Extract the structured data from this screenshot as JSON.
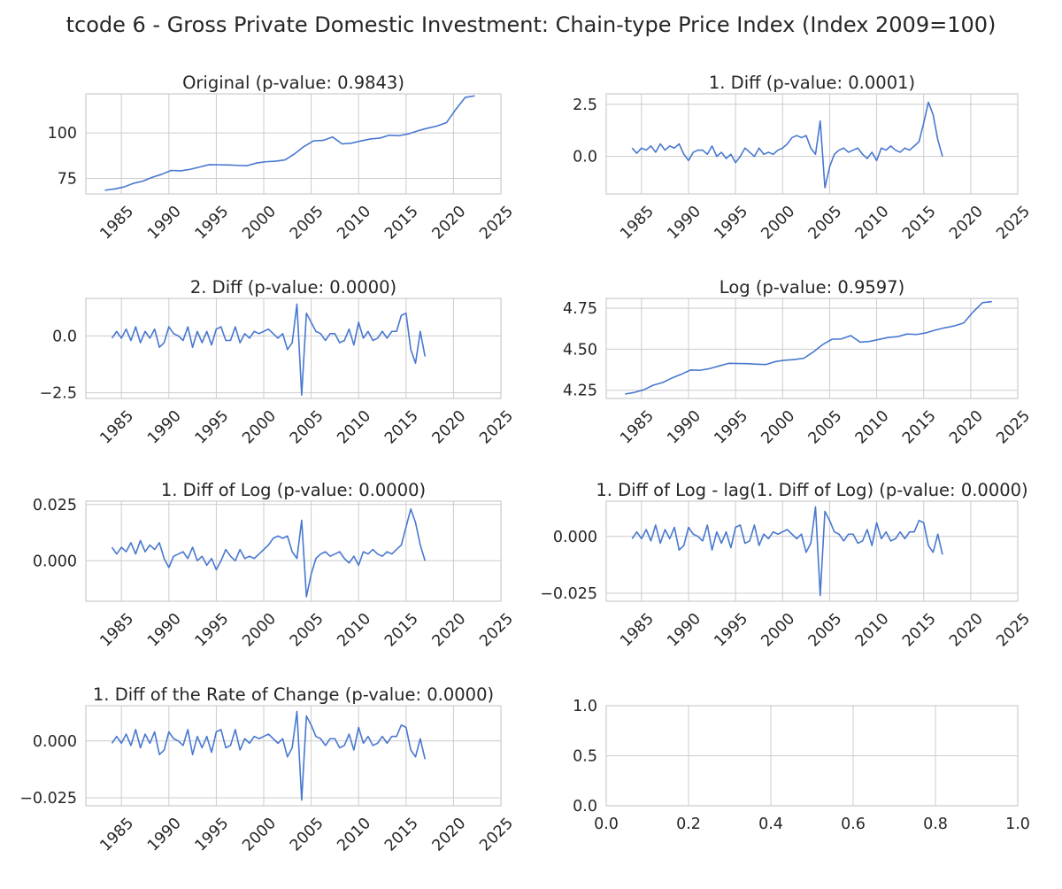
{
  "figure": {
    "suptitle": "tcode 6 - Gross Private Domestic Investment: Chain-type Price Index (Index 2009=100)",
    "line_color": "#4878cf",
    "grid_color": "#cccccc",
    "frame_color": "#cccccc"
  },
  "chart_data": [
    {
      "type": "line",
      "title": "Original (p-value: 0.9843)",
      "xlabel": "",
      "ylabel": "",
      "xlim": [
        1981.25,
        2025.0
      ],
      "ylim": [
        66.5,
        121.5
      ],
      "xticks": [
        1985,
        1990,
        1995,
        2000,
        2005,
        2010,
        2015,
        2020,
        2025
      ],
      "yticks": [
        75,
        100
      ],
      "ytick_labels": [
        "75",
        "100"
      ],
      "x_start": 1983.25,
      "x_step": 1.0,
      "values": [
        68.5,
        69.2,
        70.3,
        72.3,
        73.5,
        75.6,
        77.3,
        79.4,
        79.2,
        80.0,
        81.3,
        82.6,
        82.5,
        82.4,
        82.2,
        82.0,
        83.5,
        84.2,
        84.5,
        85.2,
        88.5,
        92.6,
        95.7,
        95.9,
        97.8,
        94.0,
        94.4,
        95.6,
        96.7,
        97.2,
        98.8,
        98.5,
        99.5,
        101.2,
        102.6,
        103.8,
        105.6,
        113.0,
        119.6,
        120.4
      ]
    },
    {
      "type": "line",
      "title": "1. Diff (p-value: 0.0001)",
      "xlabel": "",
      "ylabel": "",
      "xlim": [
        1981.25,
        2025.0
      ],
      "ylim": [
        -1.8,
        3.0
      ],
      "xticks": [
        1985,
        1990,
        1995,
        2000,
        2005,
        2010,
        2015,
        2020,
        2025
      ],
      "yticks": [
        0.0,
        2.5
      ],
      "ytick_labels": [
        "0.0",
        "2.5"
      ],
      "x_start": 1984.0,
      "x_step": 0.5,
      "values": [
        0.4,
        0.15,
        0.4,
        0.3,
        0.5,
        0.2,
        0.6,
        0.3,
        0.5,
        0.4,
        0.6,
        0.1,
        -0.2,
        0.2,
        0.3,
        0.3,
        0.1,
        0.5,
        0.0,
        0.2,
        -0.1,
        0.1,
        -0.3,
        0.0,
        0.4,
        0.2,
        0.0,
        0.4,
        0.1,
        0.2,
        0.1,
        0.3,
        0.4,
        0.6,
        0.9,
        1.0,
        0.9,
        1.0,
        0.4,
        0.1,
        1.7,
        -1.5,
        -0.5,
        0.1,
        0.3,
        0.4,
        0.2,
        0.3,
        0.4,
        0.1,
        -0.1,
        0.2,
        -0.2,
        0.4,
        0.3,
        0.5,
        0.3,
        0.2,
        0.4,
        0.3,
        0.5,
        0.7,
        1.6,
        2.6,
        2.0,
        0.8,
        0.0
      ]
    },
    {
      "type": "line",
      "title": "2. Diff (p-value: 0.0000)",
      "xlabel": "",
      "ylabel": "",
      "xlim": [
        1981.25,
        2025.0
      ],
      "ylim": [
        -2.75,
        1.65
      ],
      "xticks": [
        1985,
        1990,
        1995,
        2000,
        2005,
        2010,
        2015,
        2020,
        2025
      ],
      "yticks": [
        -2.5,
        0.0
      ],
      "ytick_labels": [
        "−2.5",
        "0.0"
      ],
      "x_start": 1984.0,
      "x_step": 0.5,
      "values": [
        -0.1,
        0.2,
        -0.1,
        0.3,
        -0.2,
        0.4,
        -0.3,
        0.2,
        -0.1,
        0.3,
        -0.5,
        -0.3,
        0.4,
        0.1,
        0.0,
        -0.2,
        0.4,
        -0.5,
        0.2,
        -0.3,
        0.2,
        -0.4,
        0.3,
        0.4,
        -0.2,
        -0.2,
        0.4,
        -0.3,
        0.1,
        -0.1,
        0.2,
        0.1,
        0.2,
        0.3,
        0.1,
        -0.1,
        0.1,
        -0.6,
        -0.3,
        1.4,
        -2.6,
        1.0,
        0.6,
        0.2,
        0.1,
        -0.2,
        0.1,
        0.1,
        -0.3,
        -0.2,
        0.3,
        -0.4,
        0.6,
        -0.1,
        0.2,
        -0.2,
        -0.1,
        0.2,
        -0.1,
        0.2,
        0.2,
        0.9,
        1.0,
        -0.6,
        -1.2,
        0.2,
        -0.9
      ]
    },
    {
      "type": "line",
      "title": "Log (p-value: 0.9597)",
      "xlabel": "",
      "ylabel": "",
      "xlim": [
        1981.25,
        2025.0
      ],
      "ylim": [
        4.2,
        4.81
      ],
      "xticks": [
        1985,
        1990,
        1995,
        2000,
        2005,
        2010,
        2015,
        2020,
        2025
      ],
      "yticks": [
        4.25,
        4.5,
        4.75
      ],
      "ytick_labels": [
        "4.25",
        "4.50",
        "4.75"
      ],
      "x_start": 1983.25,
      "x_step": 1.0,
      "values": [
        4.227,
        4.237,
        4.253,
        4.281,
        4.297,
        4.325,
        4.348,
        4.374,
        4.372,
        4.382,
        4.398,
        4.414,
        4.413,
        4.412,
        4.409,
        4.407,
        4.425,
        4.433,
        4.437,
        4.445,
        4.483,
        4.528,
        4.561,
        4.563,
        4.583,
        4.543,
        4.548,
        4.56,
        4.572,
        4.577,
        4.593,
        4.59,
        4.6,
        4.617,
        4.631,
        4.642,
        4.66,
        4.727,
        4.784,
        4.791
      ]
    },
    {
      "type": "line",
      "title": "1. Diff of Log (p-value: 0.0000)",
      "xlabel": "",
      "ylabel": "",
      "xlim": [
        1981.25,
        2025.0
      ],
      "ylim": [
        -0.018,
        0.0265
      ],
      "xticks": [
        1985,
        1990,
        1995,
        2000,
        2005,
        2010,
        2015,
        2020,
        2025
      ],
      "yticks": [
        0.0,
        0.025
      ],
      "ytick_labels": [
        "0.000",
        "0.025"
      ],
      "x_start": 1984.0,
      "x_step": 0.5,
      "values": [
        0.006,
        0.003,
        0.006,
        0.004,
        0.008,
        0.003,
        0.009,
        0.004,
        0.007,
        0.005,
        0.008,
        0.001,
        -0.003,
        0.002,
        0.003,
        0.004,
        0.001,
        0.006,
        0.0,
        0.002,
        -0.002,
        0.001,
        -0.004,
        0.0,
        0.005,
        0.002,
        0.0,
        0.005,
        0.001,
        0.002,
        0.001,
        0.003,
        0.005,
        0.007,
        0.01,
        0.011,
        0.01,
        0.011,
        0.004,
        0.001,
        0.018,
        -0.016,
        -0.006,
        0.001,
        0.003,
        0.004,
        0.002,
        0.003,
        0.004,
        0.001,
        -0.001,
        0.002,
        -0.002,
        0.004,
        0.003,
        0.005,
        0.003,
        0.002,
        0.004,
        0.003,
        0.005,
        0.007,
        0.015,
        0.023,
        0.017,
        0.007,
        0.0
      ]
    },
    {
      "type": "line",
      "title": "1. Diff of Log - lag(1. Diff of Log) (p-value: 0.0000)",
      "xlabel": "",
      "ylabel": "",
      "xlim": [
        1981.25,
        2025.0
      ],
      "ylim": [
        -0.0285,
        0.0155
      ],
      "xticks": [
        1985,
        1990,
        1995,
        2000,
        2005,
        2010,
        2015,
        2020,
        2025
      ],
      "yticks": [
        -0.025,
        0.0
      ],
      "ytick_labels": [
        "−0.025",
        "0.000"
      ],
      "x_start": 1984.0,
      "x_step": 0.5,
      "values": [
        -0.001,
        0.002,
        -0.001,
        0.003,
        -0.002,
        0.005,
        -0.003,
        0.003,
        -0.001,
        0.004,
        -0.006,
        -0.004,
        0.004,
        0.001,
        0.0,
        -0.002,
        0.005,
        -0.006,
        0.002,
        -0.003,
        0.002,
        -0.005,
        0.004,
        0.005,
        -0.003,
        -0.002,
        0.005,
        -0.004,
        0.001,
        -0.001,
        0.002,
        0.001,
        0.002,
        0.003,
        0.001,
        -0.001,
        0.001,
        -0.007,
        -0.003,
        0.013,
        -0.026,
        0.011,
        0.007,
        0.002,
        0.001,
        -0.002,
        0.001,
        0.001,
        -0.003,
        -0.002,
        0.003,
        -0.004,
        0.006,
        -0.001,
        0.002,
        -0.002,
        -0.001,
        0.002,
        -0.001,
        0.002,
        0.002,
        0.007,
        0.006,
        -0.004,
        -0.007,
        0.001,
        -0.008
      ]
    },
    {
      "type": "line",
      "title": "1. Diff of the Rate of Change (p-value: 0.0000)",
      "xlabel": "",
      "ylabel": "",
      "xlim": [
        1981.25,
        2025.0
      ],
      "ylim": [
        -0.0285,
        0.0155
      ],
      "xticks": [
        1985,
        1990,
        1995,
        2000,
        2005,
        2010,
        2015,
        2020,
        2025
      ],
      "yticks": [
        -0.025,
        0.0
      ],
      "ytick_labels": [
        "−0.025",
        "0.000"
      ],
      "x_start": 1984.0,
      "x_step": 0.5,
      "values": [
        -0.001,
        0.002,
        -0.001,
        0.003,
        -0.002,
        0.005,
        -0.003,
        0.003,
        -0.001,
        0.004,
        -0.006,
        -0.004,
        0.004,
        0.001,
        0.0,
        -0.002,
        0.005,
        -0.006,
        0.002,
        -0.003,
        0.002,
        -0.005,
        0.004,
        0.005,
        -0.003,
        -0.002,
        0.005,
        -0.004,
        0.001,
        -0.001,
        0.002,
        0.001,
        0.002,
        0.003,
        0.001,
        -0.001,
        0.001,
        -0.007,
        -0.003,
        0.013,
        -0.026,
        0.011,
        0.007,
        0.002,
        0.001,
        -0.002,
        0.001,
        0.001,
        -0.003,
        -0.002,
        0.003,
        -0.004,
        0.006,
        -0.001,
        0.002,
        -0.002,
        -0.001,
        0.002,
        -0.001,
        0.002,
        0.002,
        0.007,
        0.006,
        -0.004,
        -0.007,
        0.001,
        -0.008
      ]
    },
    {
      "type": "line",
      "title": "",
      "xlabel": "",
      "ylabel": "",
      "xlim": [
        0.0,
        1.0
      ],
      "ylim": [
        0.0,
        1.0
      ],
      "xticks": [
        0.0,
        0.2,
        0.4,
        0.6,
        0.8,
        1.0
      ],
      "xtick_labels": [
        "0.0",
        "0.2",
        "0.4",
        "0.6",
        "0.8",
        "1.0"
      ],
      "yticks": [
        0.0,
        0.5,
        1.0
      ],
      "ytick_labels": [
        "0.0",
        "0.5",
        "1.0"
      ],
      "empty": true,
      "values": []
    }
  ]
}
